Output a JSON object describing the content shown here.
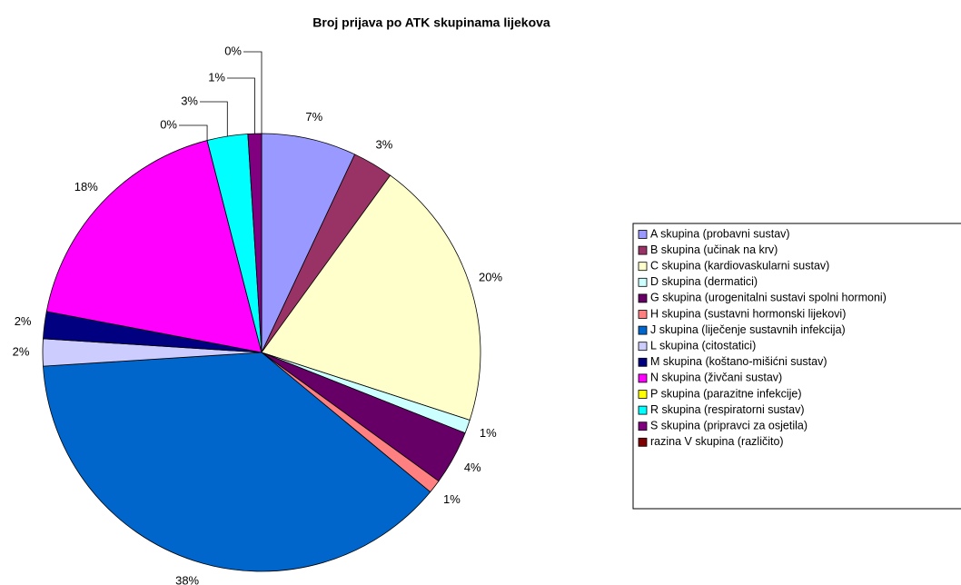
{
  "chart_data": {
    "type": "pie",
    "title": "Broj prijava po ATK skupinama lijekova",
    "categories": [
      "A skupina (probavni sustav)",
      "B skupina (učinak na krv)",
      "C skupina (kardiovaskularni sustav)",
      "D skupina (dermatici)",
      "G skupina (urogenitalni sustavi spolni hormoni)",
      "H skupina (sustavni hormonski lijekovi)",
      " J skupina (liječenje sustavnih infekcija)",
      "L skupina (citostatici)",
      "M skupina (koštano-mišićni sustav)",
      "N skupina (živčani sustav)",
      "P skupina (parazitne infekcije)",
      "R skupina (respiratorni sustav)",
      "S skupina (pripravci za osjetila)",
      "razina V skupina (različito)"
    ],
    "values": [
      7,
      3,
      20,
      1,
      4,
      1,
      38,
      2,
      2,
      18,
      0,
      3,
      1,
      0
    ],
    "value_labels": [
      "7%",
      "3%",
      "20%",
      "1%",
      "4%",
      "1%",
      "38%",
      "2%",
      "2%",
      "18%",
      "0%",
      "3%",
      "1%",
      "0%"
    ],
    "colors": [
      "#9999ff",
      "#993366",
      "#ffffcc",
      "#ccffff",
      "#660066",
      "#ff8080",
      "#0066cc",
      "#ccccff",
      "#000080",
      "#ff00ff",
      "#ffff00",
      "#00ffff",
      "#800080",
      "#800000"
    ],
    "legend": "right"
  }
}
